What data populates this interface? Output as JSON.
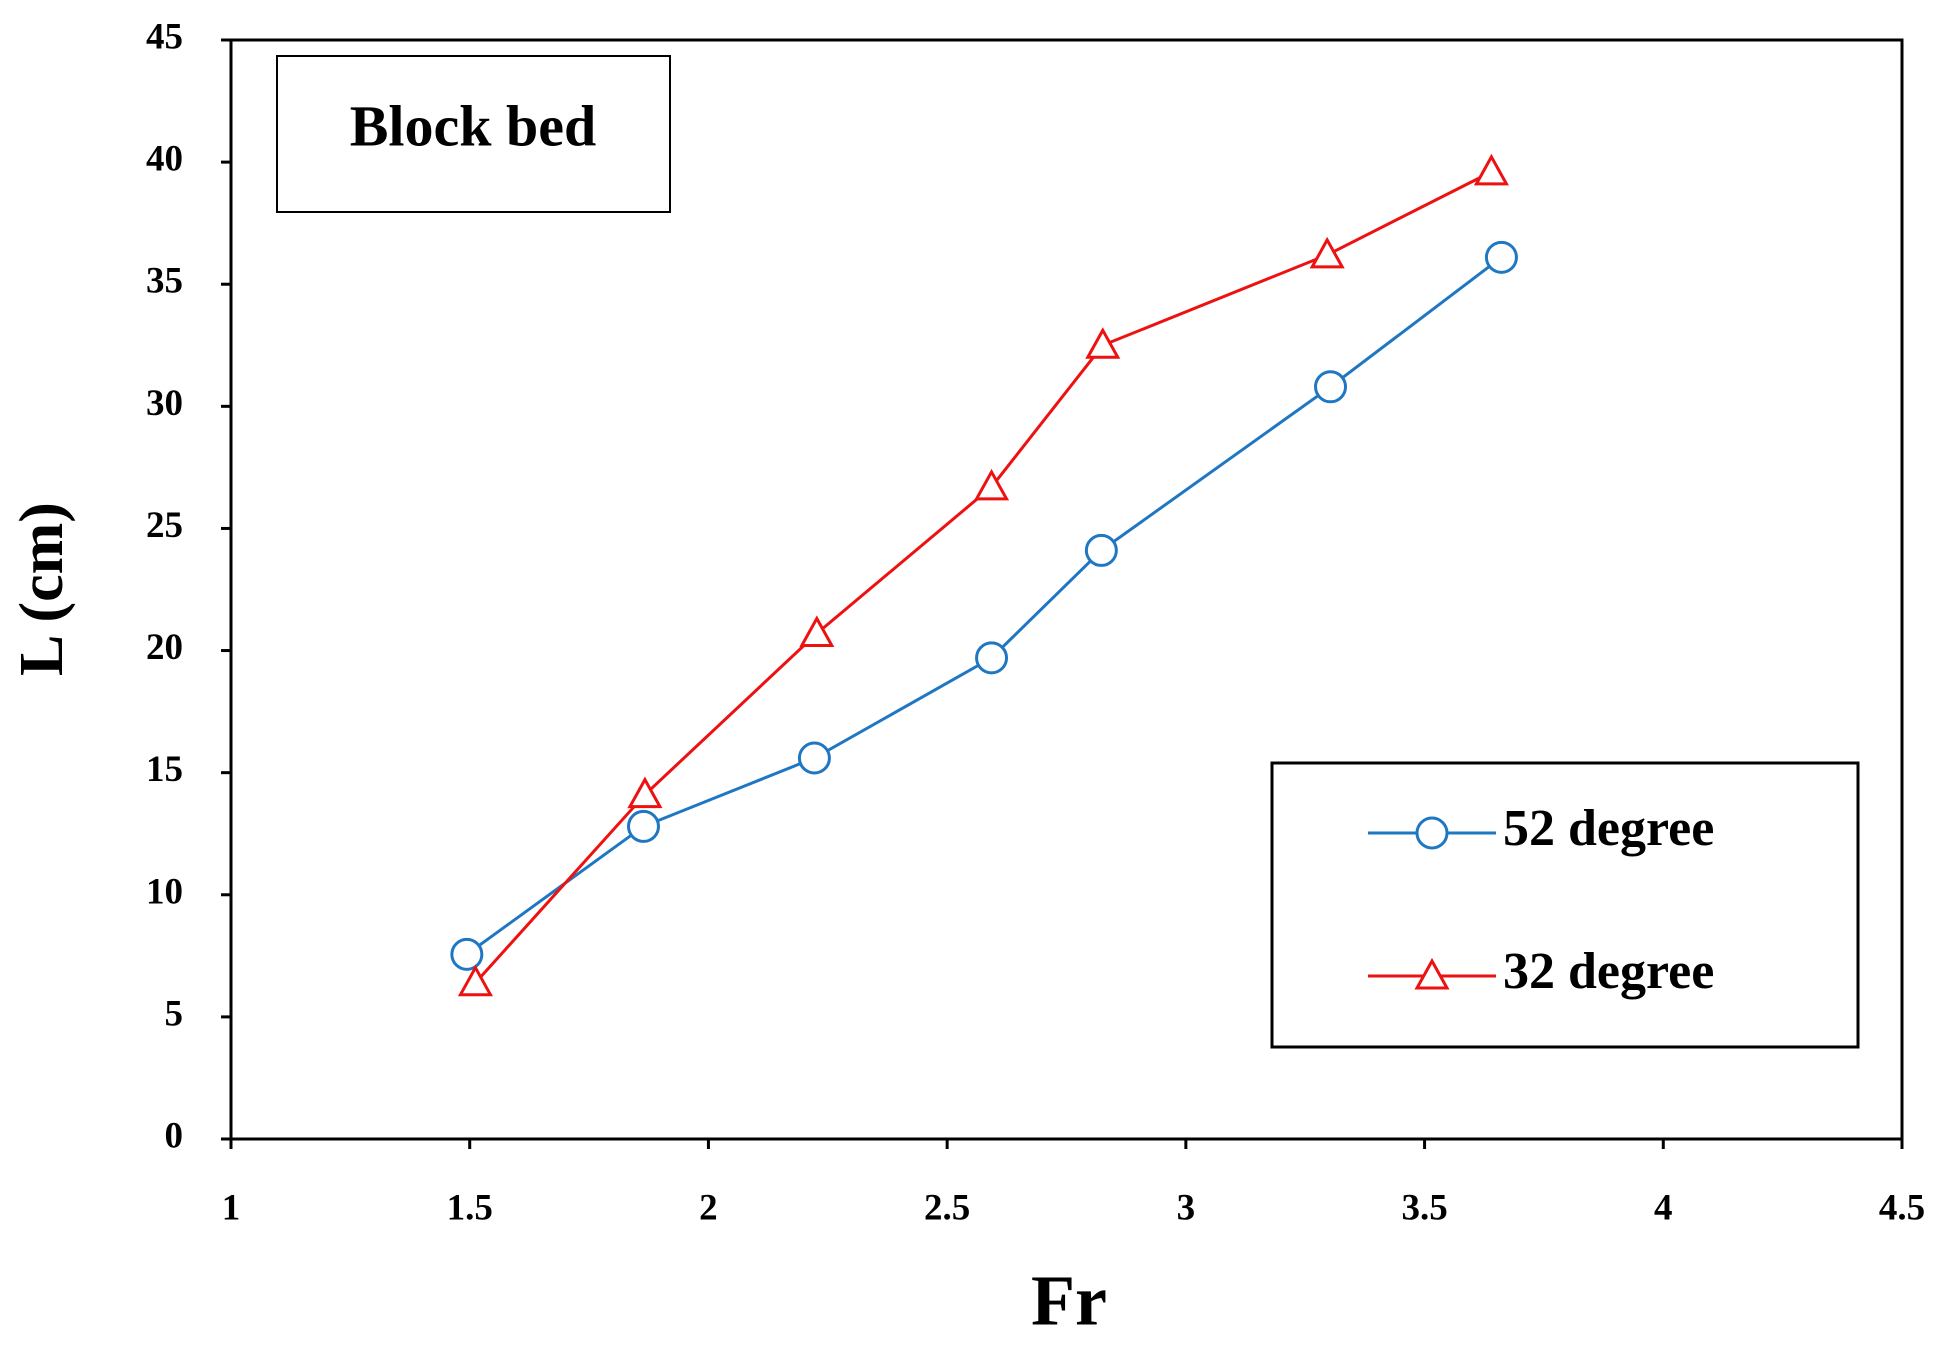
{
  "chart_data": {
    "type": "line",
    "xlabel": "Fr",
    "ylabel": "L (cm)",
    "annotation": "Block bed",
    "xlim": [
      1,
      4.5
    ],
    "xticks": [
      1,
      1.5,
      2,
      2.5,
      3,
      3.5,
      4,
      4.5
    ],
    "ylim": [
      0,
      45
    ],
    "yticks": [
      0,
      5,
      10,
      15,
      20,
      25,
      30,
      35,
      40,
      45
    ],
    "legend": "lower right",
    "series": [
      {
        "name": "52 degree",
        "color": "#1f77c4",
        "marker": "circle",
        "x": [
          1.494,
          1.864,
          2.222,
          2.593,
          2.823,
          3.303,
          3.661
        ],
        "values": [
          7.56,
          12.8,
          15.6,
          19.7,
          24.1,
          30.8,
          36.1
        ]
      },
      {
        "name": "32 degree",
        "color": "#ee1111",
        "marker": "triangle",
        "x": [
          1.512,
          1.867,
          2.227,
          2.593,
          2.826,
          3.296,
          3.64
        ],
        "values": [
          6.4,
          14.1,
          20.7,
          26.7,
          32.5,
          36.2,
          39.6
        ]
      }
    ]
  }
}
